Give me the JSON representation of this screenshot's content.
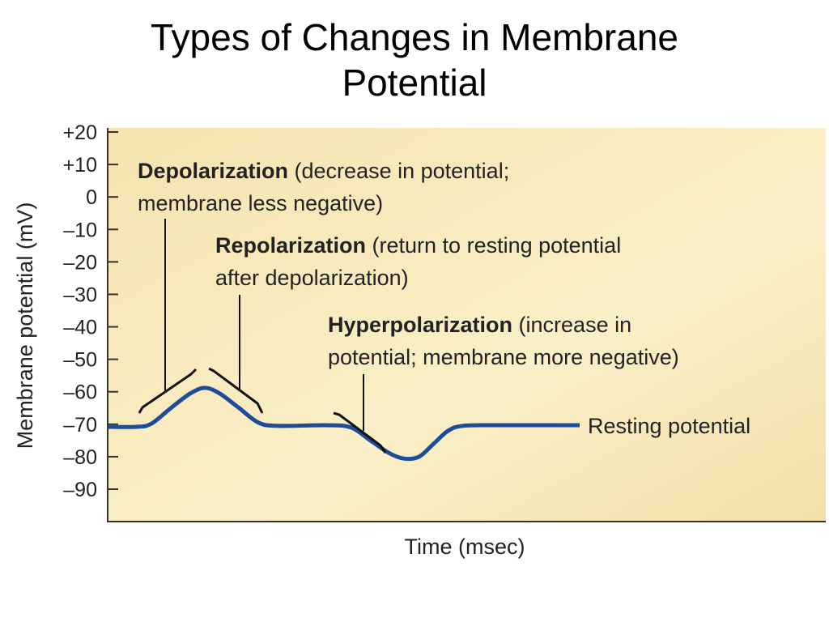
{
  "title": {
    "line1": "Types of Changes in Membrane",
    "line2": "Potential"
  },
  "chart_data": {
    "type": "line",
    "xlabel": "Time (msec)",
    "ylabel": "Membrane potential (mV)",
    "ylim": [
      -90,
      20
    ],
    "y_ticks": [
      20,
      10,
      0,
      -10,
      -20,
      -30,
      -40,
      -50,
      -60,
      -70,
      -80,
      -90
    ],
    "y_tick_labels": [
      "+20",
      "+10",
      "0",
      "–10",
      "–20",
      "–30",
      "–40",
      "–50",
      "–60",
      "–70",
      "–80",
      "–90"
    ],
    "series": [
      {
        "points": [
          [
            0,
            -70.8
          ],
          [
            6,
            -70.8
          ],
          [
            9,
            -69.8
          ],
          [
            13,
            -65
          ],
          [
            17,
            -60.5
          ],
          [
            20,
            -58.8
          ],
          [
            23,
            -60.5
          ],
          [
            27,
            -65
          ],
          [
            31,
            -69.5
          ],
          [
            35,
            -70.5
          ],
          [
            45,
            -70.3
          ],
          [
            50,
            -71
          ],
          [
            54,
            -75
          ],
          [
            58,
            -79
          ],
          [
            61,
            -80.6
          ],
          [
            64,
            -80
          ],
          [
            67,
            -76
          ],
          [
            70,
            -72
          ],
          [
            73,
            -70.5
          ],
          [
            80,
            -70.3
          ],
          [
            97,
            -70.3
          ]
        ],
        "color": "#1d4c9c"
      }
    ],
    "annotations": [
      {
        "bold": "Depolarization",
        "rest": " (decrease in potential;",
        "line2": "membrane less negative)"
      },
      {
        "bold": "Repolarization",
        "rest": " (return to resting potential",
        "line2": "after depolarization)"
      },
      {
        "bold": "Hyperpolarization",
        "rest": " (increase in",
        "line2": "potential; membrane more negative)"
      },
      {
        "text": "Resting potential"
      }
    ],
    "plot_background": "#f8e8b4",
    "grid": false
  }
}
